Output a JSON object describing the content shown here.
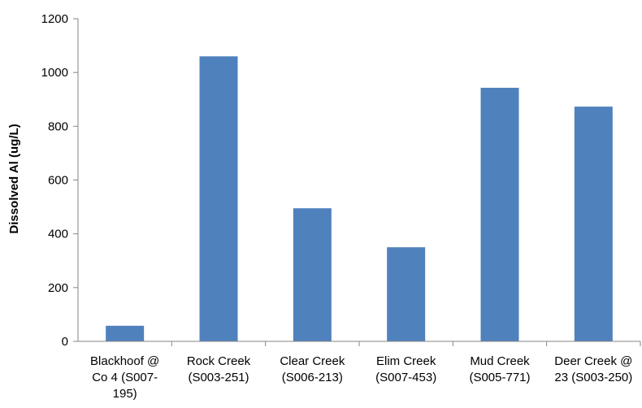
{
  "chart_data": {
    "type": "bar",
    "title": "",
    "xlabel": "",
    "ylabel": "Dissolved Al (ug/L)",
    "ylim": [
      0,
      1200
    ],
    "yticks": [
      0,
      200,
      400,
      600,
      800,
      1000,
      1200
    ],
    "grid": false,
    "legend": "none",
    "bar_color": "#4f81bd",
    "categories": [
      [
        "Blackhoof @",
        "Co 4 (S007-",
        "195)"
      ],
      [
        "Rock Creek",
        "(S003-251)"
      ],
      [
        "Clear Creek",
        "(S006-213)"
      ],
      [
        "Elim Creek",
        "(S007-453)"
      ],
      [
        "Mud Creek",
        "(S005-771)"
      ],
      [
        "Deer Creek @",
        "23 (S003-250)"
      ]
    ],
    "values": [
      58,
      1060,
      495,
      350,
      943,
      873
    ]
  }
}
